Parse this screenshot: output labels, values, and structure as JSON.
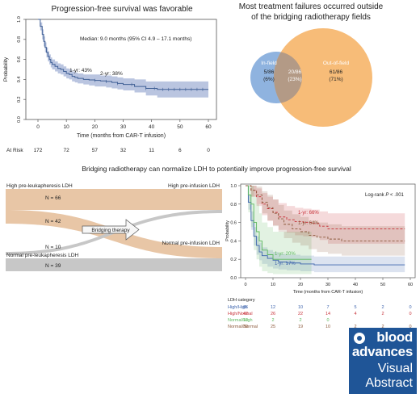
{
  "headings": {
    "pfs": "Progression-free survival was favorable",
    "failures_line1": "Most treatment failures occurred outside",
    "failures_line2": "of the bridging radiotherapy fields",
    "bridging": "Bridging radiotherapy can normalize LDH to potentially improve progression-free survival"
  },
  "colors": {
    "pfs_line": "#3f5f95",
    "pfs_band": "#a9b7d8",
    "venn_infield": "#8fb3df",
    "venn_outfield": "#f6b66d",
    "venn_overlap": "#b39a86",
    "sankey_tan": "#e8c6a6",
    "sankey_grey": "#c7c7c7",
    "high_high": "#3d64ad",
    "high_normal": "#c8323a",
    "normal_high": "#5db85e",
    "normal_normal": "#8c5a3c",
    "logo_bg": "#1f5597"
  },
  "chart_data": [
    {
      "type": "line",
      "title": "Progression-free survival was favorable",
      "xlabel": "Time (months from CAR-T infusion)",
      "ylabel": "Probability",
      "xlim": [
        0,
        60
      ],
      "ylim": [
        0,
        1.0
      ],
      "xticks": [
        "0",
        "10",
        "20",
        "30",
        "40",
        "50",
        "60"
      ],
      "yticks": [
        "0.0",
        "0.2",
        "0.4",
        "0.6",
        "0.8",
        "1.0"
      ],
      "annotation": "Median: 9.0 months (95% CI 4.9 – 17.1 months)",
      "labels": [
        "1-yr: 43%",
        "2-yr: 38%"
      ],
      "series": [
        {
          "x": [
            0,
            0.8,
            1.5,
            2,
            2.5,
            3,
            3.5,
            4,
            4.5,
            5,
            6,
            7,
            8,
            9,
            10,
            11,
            12,
            13,
            14,
            16,
            18,
            20,
            22,
            24,
            26,
            28,
            30,
            34,
            38,
            42,
            46,
            50,
            54,
            58,
            60
          ],
          "y": [
            1.0,
            0.93,
            0.85,
            0.78,
            0.72,
            0.67,
            0.63,
            0.6,
            0.57,
            0.55,
            0.53,
            0.51,
            0.5,
            0.48,
            0.46,
            0.45,
            0.43,
            0.42,
            0.41,
            0.4,
            0.395,
            0.39,
            0.385,
            0.38,
            0.37,
            0.36,
            0.35,
            0.33,
            0.31,
            0.3,
            0.3,
            0.3,
            0.3,
            0.3,
            0.3
          ],
          "lo": [
            1.0,
            0.89,
            0.8,
            0.73,
            0.67,
            0.62,
            0.58,
            0.55,
            0.52,
            0.5,
            0.48,
            0.46,
            0.45,
            0.43,
            0.41,
            0.4,
            0.38,
            0.37,
            0.36,
            0.35,
            0.34,
            0.33,
            0.33,
            0.32,
            0.31,
            0.3,
            0.29,
            0.27,
            0.24,
            0.22,
            0.22,
            0.22,
            0.22,
            0.22,
            0.22
          ],
          "hi": [
            1.0,
            0.97,
            0.9,
            0.83,
            0.77,
            0.72,
            0.68,
            0.65,
            0.62,
            0.6,
            0.58,
            0.56,
            0.55,
            0.53,
            0.51,
            0.5,
            0.48,
            0.47,
            0.46,
            0.45,
            0.45,
            0.45,
            0.44,
            0.44,
            0.43,
            0.42,
            0.41,
            0.4,
            0.38,
            0.38,
            0.38,
            0.38,
            0.38,
            0.38,
            0.38
          ]
        }
      ],
      "at_risk": {
        "label": "At Risk",
        "values": [
          "172",
          "72",
          "57",
          "32",
          "11",
          "6",
          "0"
        ]
      }
    },
    {
      "type": "venn",
      "sets": [
        {
          "name": "In-field",
          "value": "5/86",
          "pct": "(6%)"
        },
        {
          "name": "Out-of-field",
          "value": "61/86",
          "pct": "(71%)"
        }
      ],
      "overlap": {
        "value": "20/86",
        "pct": "(23%)"
      }
    },
    {
      "type": "sankey",
      "left_top": "High pre-leukapheresis LDH",
      "left_bottom": "Normal pre-leukapheresis LDH",
      "right_top": "High pre-infusion LDH",
      "right_bottom": "Normal pre-infusion LDH",
      "flows": [
        {
          "label": "N = 66",
          "from": "High pre-leukapheresis LDH",
          "to": "High pre-infusion LDH",
          "value": 66
        },
        {
          "label": "N = 42",
          "from": "High pre-leukapheresis LDH",
          "to": "Normal pre-infusion LDH",
          "value": 42
        },
        {
          "label": "N = 10",
          "from": "Normal pre-leukapheresis LDH",
          "to": "High pre-infusion LDH",
          "value": 10
        },
        {
          "label": "N = 39",
          "from": "Normal pre-leukapheresis LDH",
          "to": "Normal pre-infusion LDH",
          "value": 39
        }
      ],
      "arrow_label": "Bridging therapy"
    },
    {
      "type": "line",
      "xlabel": "Time (months from CAR-T infusion)",
      "ylabel": "Probability",
      "xlim": [
        0,
        60
      ],
      "ylim": [
        0,
        1.0
      ],
      "xticks": [
        "0",
        "10",
        "20",
        "30",
        "40",
        "50",
        "60"
      ],
      "yticks": [
        "0.0",
        "0.2",
        "0.4",
        "0.6",
        "0.8",
        "1.0"
      ],
      "annotation_prefix": "Log-rank ",
      "annotation_p": "P",
      "annotation_suffix": " < .001",
      "labels": [
        "1-yr: 66%",
        "1-yr: 64%",
        "1-yr: 20%",
        "1-yr: 17%"
      ],
      "series": [
        {
          "name": "High/High",
          "x": [
            0,
            1,
            2,
            3,
            4,
            5,
            6,
            8,
            10,
            12,
            15,
            20,
            25,
            30,
            40,
            50,
            58
          ],
          "y": [
            1.0,
            0.82,
            0.62,
            0.45,
            0.35,
            0.28,
            0.24,
            0.21,
            0.19,
            0.17,
            0.16,
            0.15,
            0.14,
            0.14,
            0.14,
            0.14,
            0.14
          ],
          "lo": [
            1.0,
            0.74,
            0.52,
            0.35,
            0.25,
            0.19,
            0.15,
            0.12,
            0.1,
            0.09,
            0.08,
            0.07,
            0.06,
            0.06,
            0.06,
            0.06,
            0.06
          ],
          "hi": [
            1.0,
            0.9,
            0.72,
            0.55,
            0.45,
            0.38,
            0.33,
            0.3,
            0.28,
            0.26,
            0.25,
            0.24,
            0.23,
            0.23,
            0.23,
            0.23,
            0.23
          ]
        },
        {
          "name": "High/Normal",
          "x": [
            0,
            2,
            4,
            6,
            8,
            10,
            12,
            15,
            18,
            21,
            24,
            27,
            30,
            35,
            40,
            45,
            50,
            58
          ],
          "y": [
            1.0,
            0.95,
            0.88,
            0.8,
            0.75,
            0.71,
            0.66,
            0.63,
            0.61,
            0.6,
            0.59,
            0.56,
            0.53,
            0.53,
            0.53,
            0.53,
            0.53,
            0.53
          ],
          "lo": [
            1.0,
            0.88,
            0.78,
            0.68,
            0.62,
            0.57,
            0.52,
            0.49,
            0.46,
            0.45,
            0.44,
            0.41,
            0.37,
            0.37,
            0.37,
            0.37,
            0.37,
            0.37
          ],
          "hi": [
            1.0,
            1.0,
            0.97,
            0.92,
            0.88,
            0.85,
            0.81,
            0.78,
            0.76,
            0.75,
            0.74,
            0.72,
            0.7,
            0.7,
            0.7,
            0.7,
            0.7,
            0.7
          ]
        },
        {
          "name": "Normal/High",
          "x": [
            0,
            1,
            2,
            3,
            4,
            5,
            6,
            8,
            10,
            12,
            15,
            20,
            24
          ],
          "y": [
            1.0,
            0.9,
            0.8,
            0.6,
            0.5,
            0.4,
            0.3,
            0.25,
            0.2,
            0.2,
            0.2,
            0.2,
            0.2
          ],
          "lo": [
            1.0,
            0.71,
            0.55,
            0.3,
            0.2,
            0.12,
            0.07,
            0.05,
            0.04,
            0.04,
            0.04,
            0.04,
            0.04
          ],
          "hi": [
            1.0,
            1.0,
            1.0,
            0.88,
            0.8,
            0.7,
            0.6,
            0.55,
            0.5,
            0.5,
            0.5,
            0.5,
            0.5
          ]
        },
        {
          "name": "Normal/Normal",
          "x": [
            0,
            2,
            4,
            6,
            8,
            10,
            12,
            14,
            17,
            20,
            23,
            26,
            30,
            35,
            40,
            45,
            50,
            58
          ],
          "y": [
            1.0,
            0.95,
            0.9,
            0.82,
            0.76,
            0.7,
            0.64,
            0.58,
            0.53,
            0.5,
            0.46,
            0.44,
            0.42,
            0.4,
            0.4,
            0.4,
            0.4,
            0.4
          ],
          "lo": [
            1.0,
            0.88,
            0.8,
            0.7,
            0.62,
            0.56,
            0.5,
            0.43,
            0.38,
            0.35,
            0.31,
            0.28,
            0.26,
            0.24,
            0.24,
            0.24,
            0.24,
            0.24
          ],
          "hi": [
            1.0,
            1.0,
            0.99,
            0.94,
            0.9,
            0.85,
            0.79,
            0.73,
            0.69,
            0.66,
            0.62,
            0.6,
            0.58,
            0.56,
            0.56,
            0.56,
            0.56,
            0.56
          ]
        }
      ],
      "risk_table": {
        "title": "LDH category",
        "rows": [
          {
            "name": "High/High",
            "values": [
              "66",
              "12",
              "10",
              "7",
              "5",
              "2",
              "0"
            ]
          },
          {
            "name": "High/Normal",
            "values": [
              "42",
              "26",
              "22",
              "14",
              "4",
              "2",
              "0"
            ]
          },
          {
            "name": "Normal/High",
            "values": [
              "10",
              "2",
              "2",
              "0",
              "",
              "",
              ""
            ]
          },
          {
            "name": "Normal/Normal",
            "values": [
              "39",
              "25",
              "19",
              "10",
              "2",
              "2",
              "0"
            ]
          }
        ]
      }
    }
  ],
  "logo": {
    "line1": "blood",
    "line2": "advances",
    "line3": "Visual",
    "line4": "Abstract"
  }
}
